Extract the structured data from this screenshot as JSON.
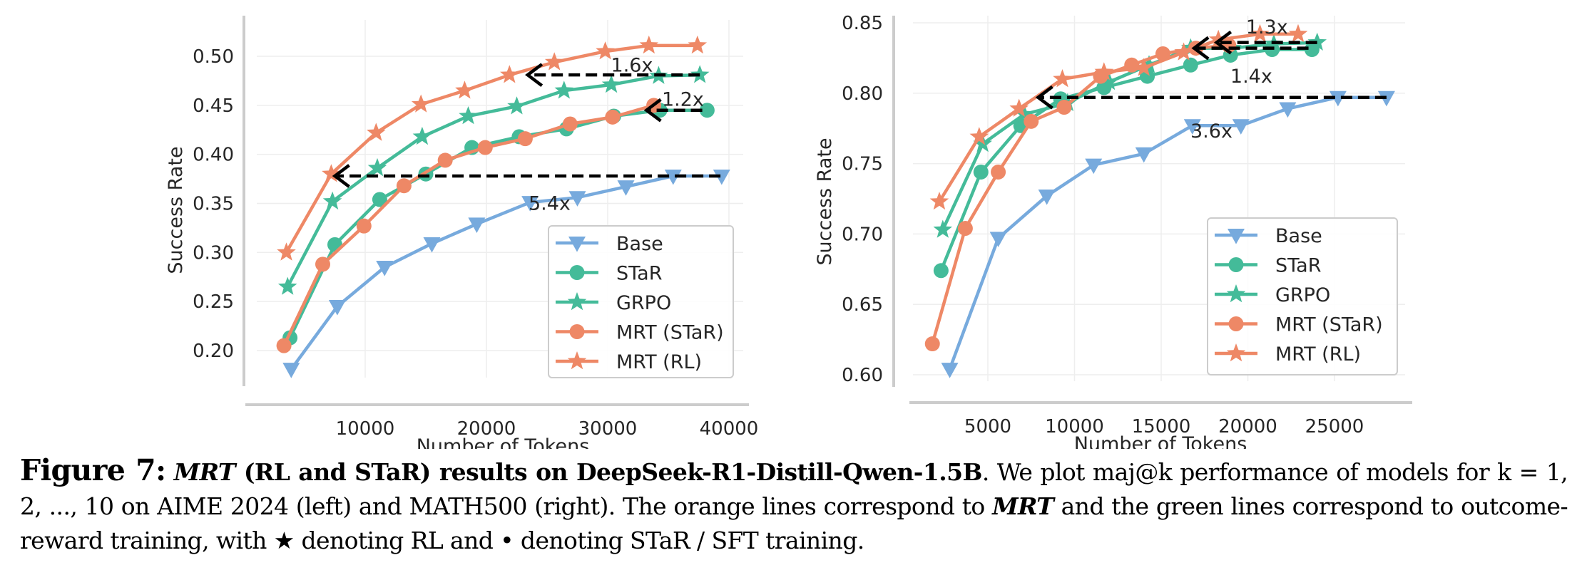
{
  "colors": {
    "base": "#77aadd",
    "green": "#44bb99",
    "orange": "#ee8866",
    "arrow": "#000000",
    "grid": "#eeeeee",
    "spine": "#cccccc",
    "legend_border": "#cccccc"
  },
  "chart_data": [
    {
      "type": "line",
      "title": "",
      "dataset": "AIME 2024",
      "xlabel": "Number of Tokens",
      "ylabel": "Success Rate",
      "xlim": [
        0,
        40000
      ],
      "ylim": [
        0.17,
        0.52
      ],
      "xticks": [
        10000,
        20000,
        30000,
        40000
      ],
      "xtick_labels": [
        "10000",
        "20000",
        "30000",
        "40000"
      ],
      "yticks": [
        0.2,
        0.25,
        0.3,
        0.35,
        0.4,
        0.45,
        0.5
      ],
      "ytick_labels": [
        "0.20",
        "0.25",
        "0.30",
        "0.35",
        "0.40",
        "0.45",
        "0.50"
      ],
      "grid": true,
      "legend_position": "bottom-right",
      "series": [
        {
          "name": "Base",
          "color_key": "base",
          "marker": "triangle-down",
          "x": [
            3900,
            7700,
            11600,
            15500,
            19200,
            23600,
            27500,
            31500,
            35400,
            39400
          ],
          "y": [
            0.181,
            0.245,
            0.285,
            0.309,
            0.329,
            0.351,
            0.356,
            0.367,
            0.378,
            0.378
          ]
        },
        {
          "name": "STaR",
          "color_key": "green",
          "marker": "circle",
          "x": [
            3800,
            7500,
            11200,
            15000,
            18800,
            22700,
            26600,
            30500,
            34300,
            38200
          ],
          "y": [
            0.213,
            0.308,
            0.354,
            0.38,
            0.407,
            0.418,
            0.426,
            0.439,
            0.445,
            0.445
          ]
        },
        {
          "name": "GRPO",
          "color_key": "green",
          "marker": "star",
          "x": [
            3600,
            7300,
            11000,
            14700,
            18500,
            22500,
            26400,
            30300,
            34200,
            37600
          ],
          "y": [
            0.265,
            0.352,
            0.386,
            0.418,
            0.439,
            0.449,
            0.465,
            0.471,
            0.48,
            0.481
          ]
        },
        {
          "name": "MRT (STaR)",
          "color_key": "orange",
          "marker": "circle",
          "x": [
            3300,
            6500,
            9900,
            13200,
            16600,
            19900,
            23200,
            26900,
            30400,
            33800
          ],
          "y": [
            0.205,
            0.288,
            0.327,
            0.368,
            0.394,
            0.407,
            0.416,
            0.431,
            0.438,
            0.45
          ]
        },
        {
          "name": "MRT (RL)",
          "color_key": "orange",
          "marker": "star",
          "x": [
            3500,
            7200,
            10900,
            14600,
            18200,
            21900,
            25600,
            29800,
            33400,
            37400
          ],
          "y": [
            0.3,
            0.38,
            0.422,
            0.451,
            0.465,
            0.481,
            0.494,
            0.505,
            0.511,
            0.511
          ]
        }
      ],
      "annotations": [
        {
          "text": "5.4x",
          "x_from": 39300,
          "x_to": 7500,
          "y": 0.378,
          "label_x": 25200,
          "label_y": 0.35
        },
        {
          "text": "1.6x",
          "x_from": 37600,
          "x_to": 23400,
          "y": 0.481,
          "label_x": 32000,
          "label_y": 0.491
        },
        {
          "text": "1.2x",
          "x_from": 37800,
          "x_to": 33200,
          "y": 0.445,
          "label_x": 36200,
          "label_y": 0.456
        }
      ]
    },
    {
      "type": "line",
      "title": "",
      "dataset": "MATH500",
      "xlabel": "Number of Tokens",
      "ylabel": "Success Rate",
      "xlim": [
        0,
        28500
      ],
      "ylim": [
        0.59,
        0.855
      ],
      "xticks": [
        5000,
        10000,
        15000,
        20000,
        25000
      ],
      "xtick_labels": [
        "5000",
        "10000",
        "15000",
        "20000",
        "25000"
      ],
      "yticks": [
        0.6,
        0.65,
        0.7,
        0.75,
        0.8,
        0.85
      ],
      "ytick_labels": [
        "0.60",
        "0.65",
        "0.70",
        "0.75",
        "0.80",
        "0.85"
      ],
      "grid": true,
      "legend_position": "bottom-right",
      "series": [
        {
          "name": "Base",
          "color_key": "base",
          "marker": "triangle-down",
          "x": [
            2800,
            5600,
            8400,
            11100,
            14000,
            16800,
            19600,
            22300,
            25200,
            28000
          ],
          "y": [
            0.604,
            0.697,
            0.727,
            0.749,
            0.757,
            0.777,
            0.777,
            0.789,
            0.797,
            0.797
          ]
        },
        {
          "name": "STaR",
          "color_key": "green",
          "marker": "circle",
          "x": [
            2300,
            4600,
            6900,
            9200,
            11700,
            14200,
            16700,
            19000,
            21400,
            23700
          ],
          "y": [
            0.674,
            0.744,
            0.777,
            0.796,
            0.804,
            0.812,
            0.82,
            0.827,
            0.831,
            0.831
          ]
        },
        {
          "name": "GRPO",
          "color_key": "green",
          "marker": "star",
          "x": [
            2400,
            4700,
            7100,
            9600,
            12000,
            14300,
            16700,
            19100,
            21500,
            24000
          ],
          "y": [
            0.703,
            0.764,
            0.785,
            0.793,
            0.808,
            0.82,
            0.832,
            0.832,
            0.835,
            0.836
          ]
        },
        {
          "name": "MRT (STaR)",
          "color_key": "orange",
          "marker": "circle",
          "x": [
            1800,
            3700,
            5600,
            7500,
            9400,
            11500,
            13300,
            15100,
            17000,
            18900
          ],
          "y": [
            0.622,
            0.704,
            0.744,
            0.78,
            0.79,
            0.812,
            0.82,
            0.828,
            0.832,
            0.834
          ]
        },
        {
          "name": "MRT (RL)",
          "color_key": "orange",
          "marker": "star",
          "x": [
            2200,
            4500,
            6800,
            9300,
            11700,
            14000,
            16300,
            18300,
            20700,
            22900
          ],
          "y": [
            0.723,
            0.769,
            0.789,
            0.81,
            0.815,
            0.818,
            0.829,
            0.838,
            0.842,
            0.842
          ]
        }
      ],
      "annotations": [
        {
          "text": "3.6x",
          "x_from": 28000,
          "x_to": 7900,
          "y": 0.797,
          "label_x": 17900,
          "label_y": 0.773
        },
        {
          "text": "1.4x",
          "x_from": 23500,
          "x_to": 16900,
          "y": 0.832,
          "label_x": 20200,
          "label_y": 0.812
        },
        {
          "text": "1.3x",
          "x_from": 24000,
          "x_to": 18200,
          "y": 0.836,
          "label_x": 21100,
          "label_y": 0.847
        }
      ]
    }
  ],
  "caption": {
    "figure_label": "Figure 7",
    "colon": ":",
    "title_italic": "MRT",
    "title_rest": " (RL and STaR) results on DeepSeek-R1-Distill-Qwen-1.5B",
    "body_1": ". We plot maj@k performance of models for k = 1, 2, ..., 10 on AIME 2024 (left) and MATH500 (right). The orange lines correspond to ",
    "body_italic": "MRT",
    "body_2": " and the green lines correspond to outcome-reward training, with ★ denoting RL and • denoting STaR / SFT training."
  }
}
